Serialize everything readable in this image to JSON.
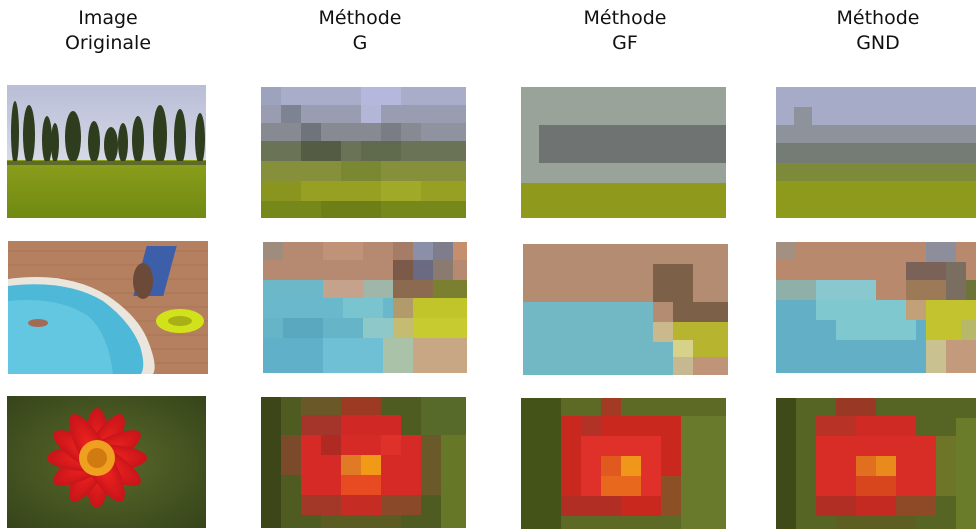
{
  "headers": [
    {
      "line1": "Image",
      "line2": "Originale"
    },
    {
      "line1": "Méthode",
      "line2": "G"
    },
    {
      "line1": "Méthode",
      "line2": "GF"
    },
    {
      "line1": "Méthode",
      "line2": "GND"
    }
  ],
  "rows": [
    "trees",
    "pool",
    "flower"
  ]
}
